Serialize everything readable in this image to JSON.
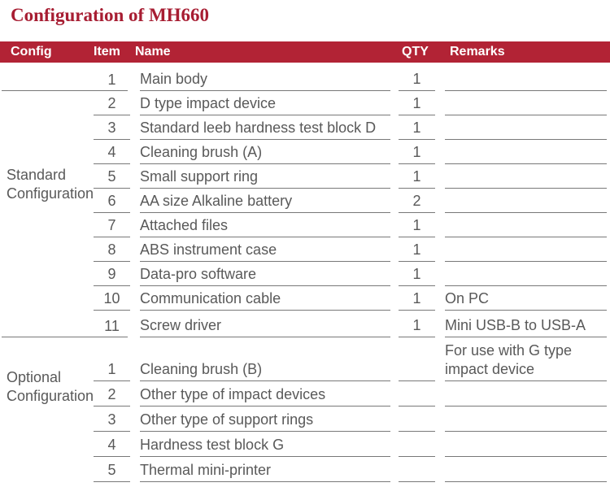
{
  "title": "Configuration of MH660",
  "colors": {
    "header_bg": "#B22335",
    "title_red": "#A71D32",
    "body_text": "#595959",
    "rule_line": "#787878",
    "header_text": "#FFFFFF"
  },
  "header": {
    "config": "Config",
    "item": "Item",
    "name": "Name",
    "qty": "QTY",
    "remarks": "Remarks"
  },
  "groups": [
    {
      "label": "Standard Configuration",
      "rows": [
        {
          "item": "1",
          "name": "Main body",
          "qty": "1",
          "remarks": "",
          "left_line": true
        },
        {
          "item": "2",
          "name": "D type impact device",
          "qty": "1",
          "remarks": ""
        },
        {
          "item": "3",
          "name": "Standard leeb hardness test block D",
          "qty": "1",
          "remarks": ""
        },
        {
          "item": "4",
          "name": "Cleaning brush (A)",
          "qty": "1",
          "remarks": ""
        },
        {
          "item": "5",
          "name": "Small support ring",
          "qty": "1",
          "remarks": ""
        },
        {
          "item": "6",
          "name": "AA size Alkaline battery",
          "qty": "2",
          "remarks": ""
        },
        {
          "item": "7",
          "name": "Attached files",
          "qty": "1",
          "remarks": ""
        },
        {
          "item": "8",
          "name": "ABS instrument case",
          "qty": "1",
          "remarks": ""
        },
        {
          "item": "9",
          "name": "Data-pro software",
          "qty": "1",
          "remarks": ""
        },
        {
          "item": "10",
          "name": "Communication cable",
          "qty": "1",
          "remarks": "On PC"
        },
        {
          "item": "11",
          "name": "Screw driver",
          "qty": "1",
          "remarks": "Mini USB-B to USB-A",
          "left_line": true
        }
      ]
    },
    {
      "label": "Optional Configuration",
      "rows": [
        {
          "item": "1",
          "name": "Cleaning brush (B)",
          "qty": "",
          "remarks": "For use with G type\nimpact device"
        },
        {
          "item": "2",
          "name": "Other type of impact devices",
          "qty": "",
          "remarks": ""
        },
        {
          "item": "3",
          "name": "Other type of support rings",
          "qty": "",
          "remarks": ""
        },
        {
          "item": "4",
          "name": "Hardness test block G",
          "qty": "",
          "remarks": ""
        },
        {
          "item": "5",
          "name": "Thermal mini-printer",
          "qty": "",
          "remarks": ""
        }
      ]
    }
  ]
}
